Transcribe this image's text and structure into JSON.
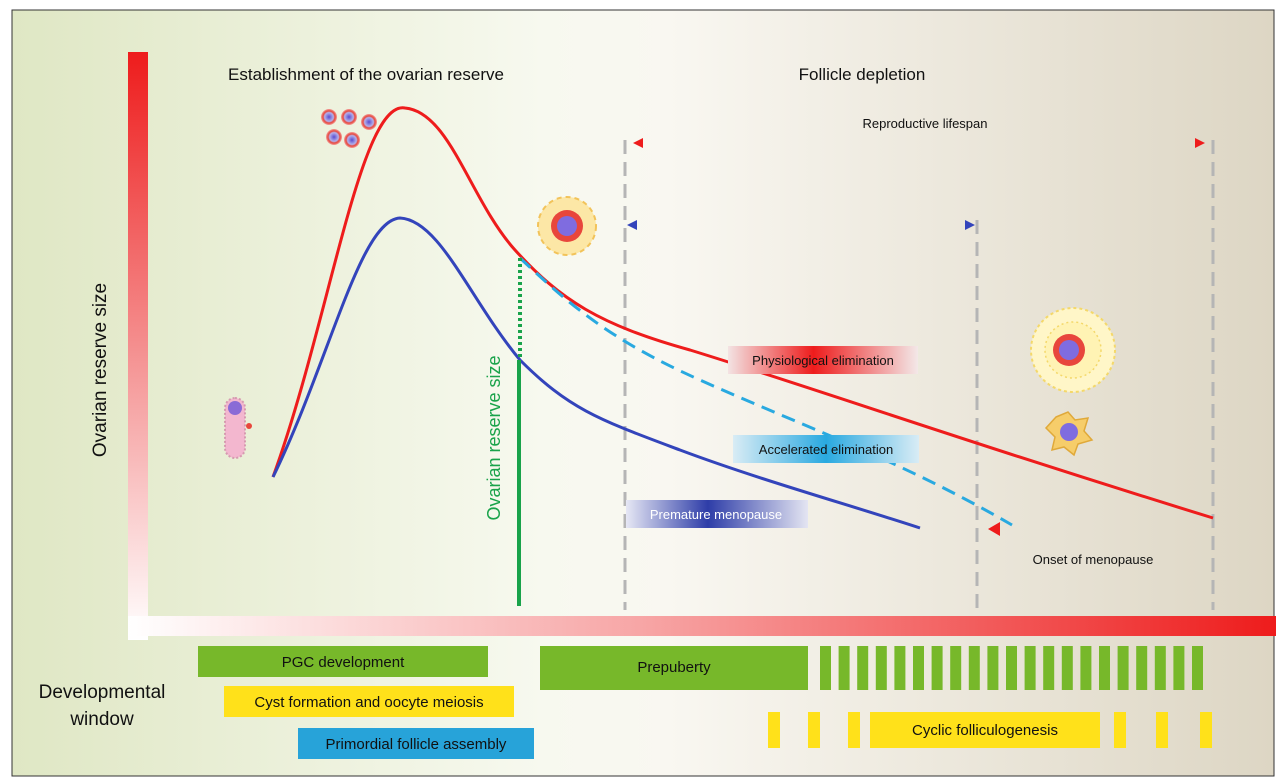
{
  "headers": {
    "establishment": "Establishment of the ovarian reserve",
    "depletion": "Follicle depletion"
  },
  "axes": {
    "y_label": "Ovarian reserve size",
    "x_label_line1": "Developmental",
    "x_label_line2": "window"
  },
  "annotations": {
    "reserve_marker": "Ovarian reserve size",
    "reproductive_lifespan": "Reproductive lifespan",
    "physiological": "Physiological elimination",
    "accelerated": "Accelerated elimination",
    "premature": "Premature menopause",
    "onset": "Onset of menopause"
  },
  "stages": {
    "pgc": "PGC development",
    "cyst": "Cyst formation and oocyte meiosis",
    "primordial": "Primordial follicle assembly",
    "prepuberty": "Prepuberty",
    "cyclic": "Cyclic folliculogenesis"
  },
  "colors": {
    "normal_curve": "#ee1c1c",
    "reduced_curve": "#3344bb",
    "accelerated_curve": "#29a9e0",
    "reserve_marker": "#19a34a",
    "stage_green": "#77b82a",
    "stage_yellow": "#ffe11a",
    "stage_blue": "#27a3d9",
    "axis_red": "#ee1c1c"
  },
  "icons": [
    "germ-cell-icon",
    "oocyte-cluster-icon",
    "primordial-follicle-icon",
    "antral-follicle-icon",
    "atretic-follicle-icon"
  ]
}
